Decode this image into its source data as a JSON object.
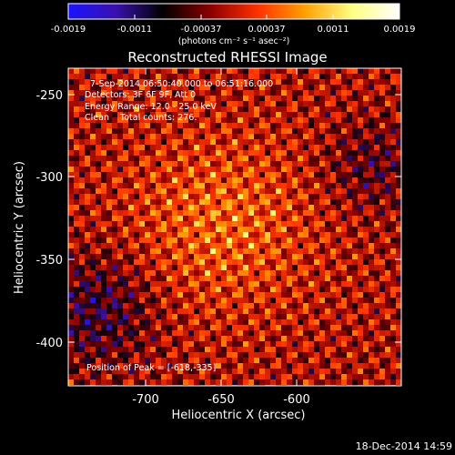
{
  "colorbar": {
    "tick_labels": [
      "-0.0019",
      "-0.0011",
      "-0.00037",
      "0.00037",
      "0.0011",
      "0.0019"
    ],
    "unit_label": "(photons cm⁻² s⁻¹ asec⁻²)",
    "colormap": [
      "#1a14ff",
      "#3a10b0",
      "#000000",
      "#8a0000",
      "#ff3000",
      "#ffa000",
      "#ffff80",
      "#ffffff"
    ]
  },
  "title": "Reconstructed RHESSI Image",
  "annotations": {
    "time_range": "7-Sep-2014 06:50:40.000 to 06:51:16.000",
    "detectors": "Detectors: 3F 6F 9F, Att 0",
    "energy_range": "Energy Range: 12.0 - 25.0 keV",
    "clean_counts": "Clean    Total counts: 276.",
    "peak_position": "Position of Peak = [-618,-335]"
  },
  "axes": {
    "xlabel": "Heliocentric X (arcsec)",
    "ylabel": "Heliocentric Y (arcsec)",
    "x_ticks": [
      "-700",
      "-650",
      "-600"
    ],
    "y_ticks": [
      "-250",
      "-300",
      "-350",
      "-400"
    ]
  },
  "footer_timestamp": "18-Dec-2014 14:59"
}
